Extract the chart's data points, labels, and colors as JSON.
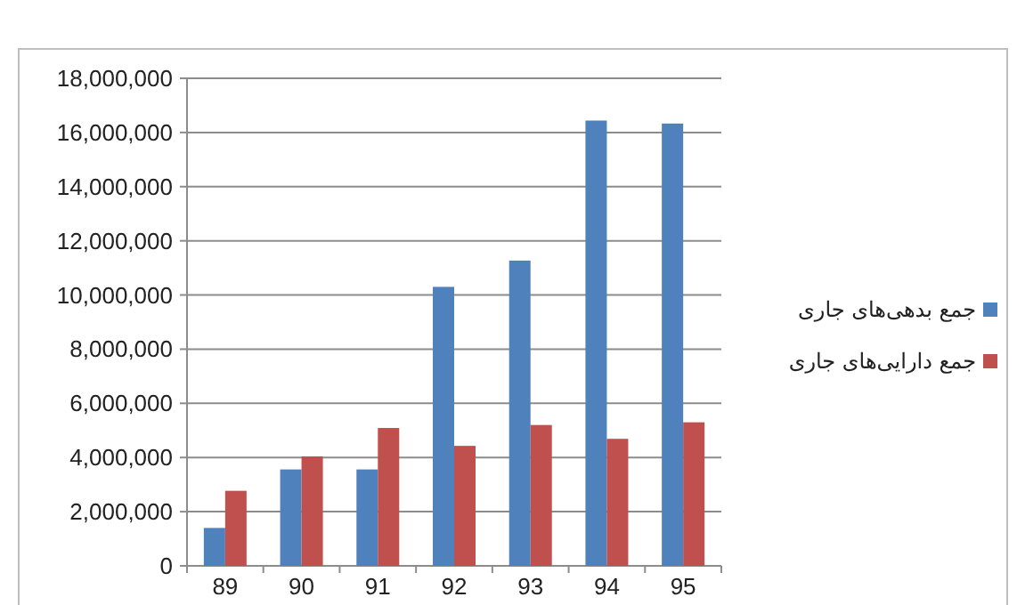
{
  "chart_data": {
    "type": "bar",
    "categories": [
      "89",
      "90",
      "91",
      "92",
      "93",
      "94",
      "95"
    ],
    "series": [
      {
        "name": "جمع بدهی‌های جاری",
        "color": "#4f81bd",
        "values": [
          1400000,
          3560000,
          3560000,
          10300000,
          11270000,
          16440000,
          16330000
        ]
      },
      {
        "name": "جمع دارایی‌های جاری",
        "color": "#c0504d",
        "values": [
          2770000,
          4040000,
          5090000,
          4430000,
          5200000,
          4690000,
          5300000
        ]
      }
    ],
    "ylim": [
      0,
      18000000
    ],
    "yticks": [
      0,
      {
        "value": 2000000,
        "label": "2,000,000"
      },
      {
        "value": 4000000,
        "label": "4,000,000"
      },
      {
        "value": 6000000,
        "label": "6,000,000"
      },
      {
        "value": 8000000,
        "label": "8,000,000"
      },
      {
        "value": 10000000,
        "label": "10,000,000"
      },
      {
        "value": 12000000,
        "label": "12,000,000"
      },
      {
        "value": 14000000,
        "label": "14,000,000"
      },
      {
        "value": 16000000,
        "label": "16,000,000"
      },
      {
        "value": 18000000,
        "label": "18,000,000"
      }
    ],
    "grid": "y",
    "legend": "right"
  }
}
